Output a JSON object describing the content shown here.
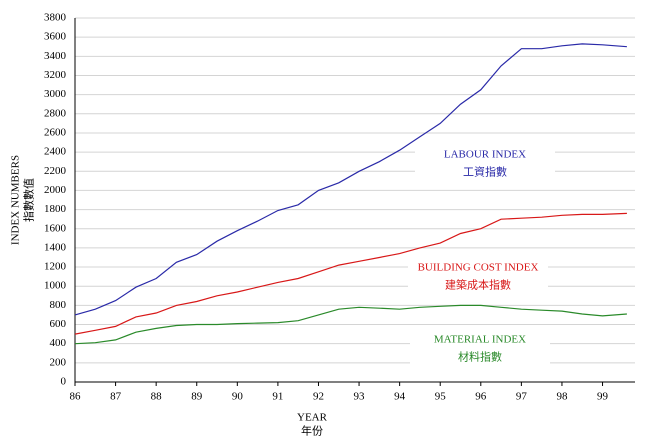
{
  "chart_data": {
    "type": "line",
    "xlabel": "YEAR",
    "xlabel_zh": "年份",
    "ylabel": "INDEX NUMBERS",
    "ylabel_zh": "指數數值",
    "x": [
      86,
      86.5,
      87,
      87.5,
      88,
      88.5,
      89,
      89.5,
      90,
      90.5,
      91,
      91.5,
      92,
      92.5,
      93,
      93.5,
      94,
      94.5,
      95,
      95.5,
      96,
      96.5,
      97,
      97.5,
      98,
      98.5,
      99,
      99.6
    ],
    "series": [
      {
        "name": "LABOUR INDEX",
        "name_zh": "工資指數",
        "color": "#2a2aa8",
        "values": [
          700,
          760,
          850,
          990,
          1080,
          1250,
          1330,
          1470,
          1580,
          1680,
          1790,
          1850,
          2000,
          2080,
          2200,
          2300,
          2420,
          2560,
          2700,
          2900,
          3050,
          3300,
          3480,
          3480,
          3510,
          3530,
          3520,
          3500
        ]
      },
      {
        "name": "BUILDING COST INDEX",
        "name_zh": "建築成本指數",
        "color": "#d81818",
        "values": [
          500,
          540,
          580,
          680,
          720,
          800,
          840,
          900,
          940,
          990,
          1040,
          1080,
          1150,
          1220,
          1260,
          1300,
          1340,
          1400,
          1450,
          1550,
          1600,
          1700,
          1710,
          1720,
          1740,
          1750,
          1750,
          1760
        ]
      },
      {
        "name": "MATERIAL INDEX",
        "name_zh": "材料指數",
        "color": "#2a8a2a",
        "values": [
          400,
          410,
          440,
          520,
          560,
          590,
          600,
          600,
          610,
          615,
          620,
          640,
          700,
          760,
          780,
          770,
          760,
          780,
          790,
          800,
          800,
          780,
          760,
          750,
          740,
          710,
          690,
          710
        ]
      }
    ],
    "xlim": [
      86,
      99.8
    ],
    "xticks": [
      86,
      87,
      88,
      89,
      90,
      91,
      92,
      93,
      94,
      95,
      96,
      97,
      98,
      99
    ],
    "ylim": [
      0,
      3800
    ],
    "yticks": [
      0,
      200,
      400,
      600,
      800,
      1000,
      1200,
      1400,
      1600,
      1800,
      2000,
      2200,
      2400,
      2600,
      2800,
      3000,
      3200,
      3400,
      3600,
      3800
    ],
    "grid": true
  }
}
